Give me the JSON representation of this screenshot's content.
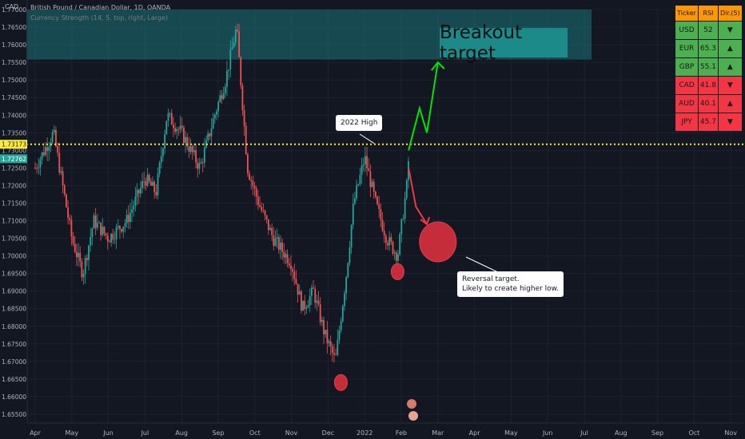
{
  "header": {
    "currency_label": "CAD",
    "title": "British Pound / Canadian Dollar, 1D, OANDA",
    "indicator": "Currency Strength (14, 5, top, right, Large)"
  },
  "price_axis": {
    "ticks": [
      "1.77000",
      "1.76500",
      "1.76000",
      "1.75500",
      "1.75000",
      "1.74500",
      "1.74000",
      "1.73500",
      "1.73000",
      "1.72500",
      "1.72000",
      "1.71500",
      "1.71000",
      "1.70500",
      "1.70000",
      "1.69500",
      "1.69000",
      "1.68500",
      "1.68000",
      "1.67500",
      "1.67000",
      "1.66500",
      "1.66000",
      "1.65500"
    ],
    "level_label": "1.73173",
    "current_label": "1.72762",
    "level_color": "#ffeb3b",
    "current_color": "#26a69a"
  },
  "time_axis": {
    "ticks": [
      "Apr",
      "May",
      "Jun",
      "Jul",
      "Aug",
      "Sep",
      "Oct",
      "Nov",
      "Dec",
      "2022",
      "Feb",
      "Mar",
      "Apr",
      "May",
      "Jun",
      "Jul",
      "Aug",
      "Sep",
      "Oct",
      "Nov"
    ]
  },
  "annotations": {
    "breakout": "Breakout target",
    "high_2022": "2022 High",
    "reversal_line1": "Reversal target.",
    "reversal_line2": "Likely to create higher low."
  },
  "strength_table": {
    "headers": [
      "Ticker",
      "RSI",
      "Dir.(5)"
    ],
    "rows": [
      {
        "ticker": "USD",
        "rsi": "52",
        "dir": "▼",
        "trend": "up"
      },
      {
        "ticker": "EUR",
        "rsi": "65.3",
        "dir": "▲",
        "trend": "up"
      },
      {
        "ticker": "GBP",
        "rsi": "55.1",
        "dir": "▲",
        "trend": "up"
      },
      {
        "ticker": "CAD",
        "rsi": "41.8",
        "dir": "▼",
        "trend": "down"
      },
      {
        "ticker": "AUD",
        "rsi": "40.1",
        "dir": "▲",
        "trend": "down"
      },
      {
        "ticker": "JPY",
        "rsi": "45.7",
        "dir": "▼",
        "trend": "down"
      }
    ]
  },
  "chart_data": {
    "type": "candlestick",
    "symbol": "GBPCAD",
    "timeframe": "1D",
    "ylim": [
      1.6525,
      1.77
    ],
    "horizontal_level": 1.73173,
    "breakout_zone": [
      1.7558,
      1.77
    ],
    "close_path": {
      "months": [
        0,
        0.5,
        1.0,
        1.3,
        1.6,
        2.0,
        2.5,
        3.0,
        3.3,
        3.6,
        4.0,
        4.5,
        4.9,
        5.2,
        5.5,
        5.8,
        6.1,
        6.5,
        7.0,
        7.3,
        7.6,
        7.9,
        8.2,
        8.5,
        8.7,
        9.0,
        9.3,
        9.6,
        9.9,
        10.15,
        10.2
      ],
      "prices": [
        1.725,
        1.735,
        1.705,
        1.695,
        1.71,
        1.705,
        1.71,
        1.722,
        1.718,
        1.74,
        1.735,
        1.725,
        1.74,
        1.75,
        1.765,
        1.725,
        1.715,
        1.705,
        1.698,
        1.685,
        1.69,
        1.678,
        1.67,
        1.695,
        1.715,
        1.728,
        1.715,
        1.705,
        1.7,
        1.72,
        1.7276
      ]
    },
    "projection_up": [
      [
        10.2,
        1.73
      ],
      [
        10.5,
        1.742
      ],
      [
        10.7,
        1.735
      ],
      [
        11.0,
        1.755
      ]
    ],
    "projection_down": [
      [
        10.2,
        1.725
      ],
      [
        10.4,
        1.714
      ],
      [
        10.7,
        1.709
      ]
    ],
    "markers": [
      {
        "month": 9.9,
        "price": 1.6955,
        "size": "small"
      },
      {
        "month": 8.35,
        "price": 1.664,
        "size": "small"
      },
      {
        "month": 11.0,
        "price": 1.704,
        "size": "large"
      }
    ]
  }
}
